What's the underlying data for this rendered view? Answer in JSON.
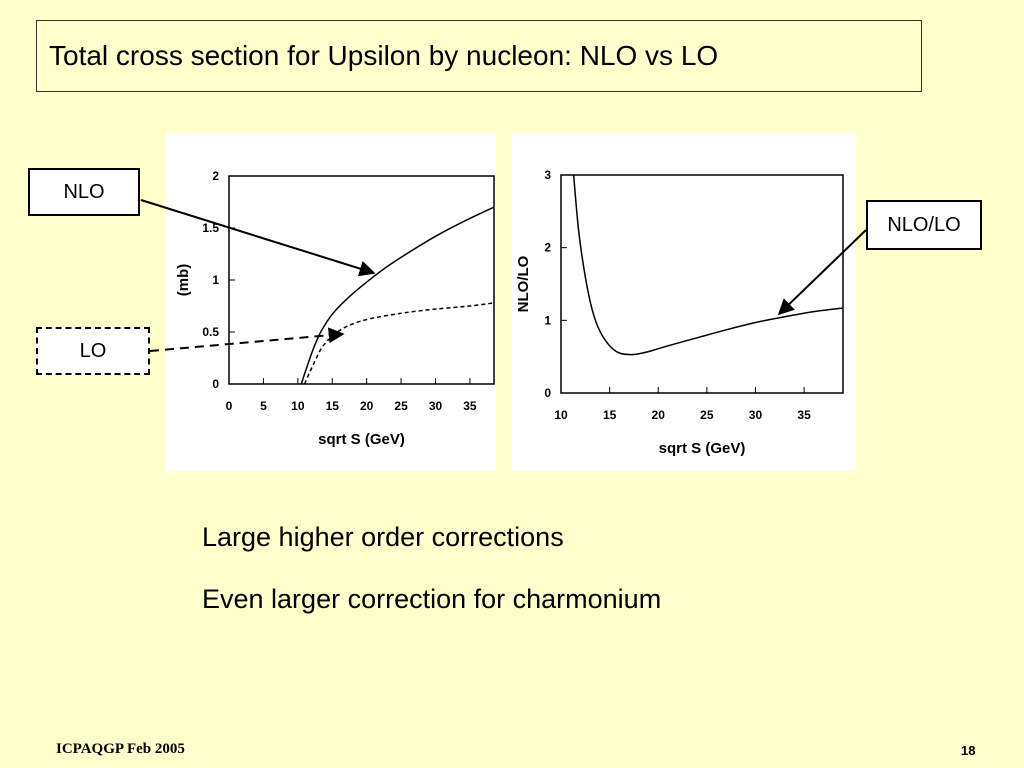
{
  "slide": {
    "title": "Total cross section for Upsilon by nucleon:  NLO vs LO",
    "bullets": [
      "Large higher order corrections",
      "Even larger correction for charmonium"
    ],
    "footer": "ICPAQGP Feb 2005",
    "page_number": "18"
  },
  "callouts": {
    "nlo": "NLO",
    "lo": "LO",
    "ratio": "NLO/LO"
  },
  "chart_data": [
    {
      "type": "line",
      "xlabel": "sqrt S (GeV)",
      "ylabel": "(mb)",
      "xlim": [
        0,
        38.5
      ],
      "ylim": [
        0,
        2
      ],
      "xticks": [
        0,
        5,
        10,
        15,
        20,
        25,
        30,
        35
      ],
      "yticks": [
        0,
        0.5,
        1,
        1.5,
        2
      ],
      "xtick_labels": [
        "0",
        "5",
        "10",
        "15",
        "20",
        "25",
        "30",
        "35"
      ],
      "ytick_labels": [
        "0",
        "0.5",
        "1",
        "1.5",
        "2"
      ],
      "series": [
        {
          "name": "NLO",
          "style": "solid",
          "x": [
            10.5,
            11.5,
            12.5,
            13.5,
            15,
            17,
            20,
            23,
            26,
            30,
            34,
            38.5
          ],
          "y": [
            0,
            0.2,
            0.38,
            0.52,
            0.67,
            0.81,
            0.98,
            1.13,
            1.26,
            1.42,
            1.56,
            1.7
          ]
        },
        {
          "name": "LO",
          "style": "dashed",
          "x": [
            11,
            11.5,
            12.5,
            13.5,
            15,
            17,
            20,
            25,
            30,
            35,
            38.5
          ],
          "y": [
            0,
            0.08,
            0.22,
            0.35,
            0.46,
            0.55,
            0.62,
            0.68,
            0.72,
            0.75,
            0.78
          ]
        }
      ]
    },
    {
      "type": "line",
      "xlabel": "sqrt S (GeV)",
      "ylabel": "NLO/LO",
      "xlim": [
        10,
        39
      ],
      "ylim": [
        0,
        3
      ],
      "xticks": [
        10,
        15,
        20,
        25,
        30,
        35
      ],
      "yticks": [
        0,
        1,
        2,
        3
      ],
      "xtick_labels": [
        "10",
        "15",
        "20",
        "25",
        "30",
        "35"
      ],
      "ytick_labels": [
        "0",
        "1",
        "2",
        "3"
      ],
      "series": [
        {
          "name": "NLO/LO",
          "style": "solid",
          "x": [
            11.3,
            11.8,
            12.5,
            13.2,
            14,
            15,
            16,
            17.5,
            19,
            21,
            24,
            27,
            30,
            33,
            36,
            39
          ],
          "y": [
            3.0,
            2.25,
            1.6,
            1.15,
            0.85,
            0.65,
            0.55,
            0.53,
            0.57,
            0.65,
            0.76,
            0.87,
            0.97,
            1.05,
            1.12,
            1.17
          ]
        }
      ]
    }
  ]
}
